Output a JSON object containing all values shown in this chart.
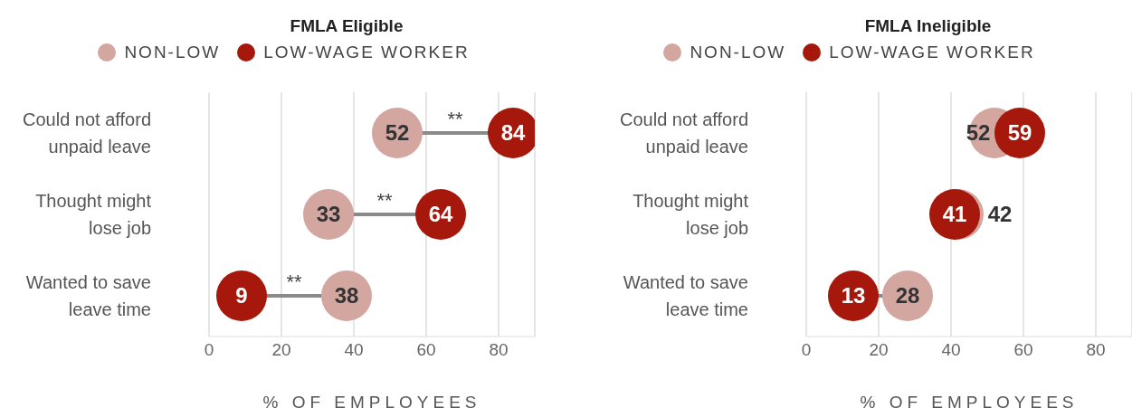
{
  "chart_data": [
    {
      "type": "scatter",
      "title": "FMLA Eligible",
      "orientation": "horizontal",
      "categories": [
        "Could not afford unpaid leave",
        "Thought might lose job",
        "Wanted to save leave time"
      ],
      "series": [
        {
          "name": "NON-LOW",
          "color": "#d4a6a0",
          "values": [
            52,
            33,
            38
          ]
        },
        {
          "name": "LOW-WAGE WORKER",
          "color": "#a5180b",
          "values": [
            84,
            64,
            9
          ]
        }
      ],
      "xlabel": "% OF EMPLOYEES",
      "xlim": [
        0,
        90
      ],
      "xticks": [
        0,
        20,
        40,
        60,
        80
      ],
      "grid": "x",
      "legend": "top",
      "data_labels": true,
      "marker": "circle",
      "annotations": [
        "**",
        "**",
        "**"
      ]
    },
    {
      "type": "scatter",
      "title": "FMLA Ineligible",
      "orientation": "horizontal",
      "categories": [
        "Could not afford unpaid leave",
        "Thought might lose job",
        "Wanted to save leave time"
      ],
      "series": [
        {
          "name": "NON-LOW",
          "color": "#d4a6a0",
          "values": [
            52,
            42,
            28
          ]
        },
        {
          "name": "LOW-WAGE WORKER",
          "color": "#a5180b",
          "values": [
            59,
            41,
            13
          ]
        }
      ],
      "xlabel": "% OF EMPLOYEES",
      "xlim": [
        0,
        90
      ],
      "xticks": [
        0,
        20,
        40,
        60,
        80
      ],
      "grid": "x",
      "legend": "top",
      "data_labels": true,
      "marker": "circle"
    }
  ]
}
